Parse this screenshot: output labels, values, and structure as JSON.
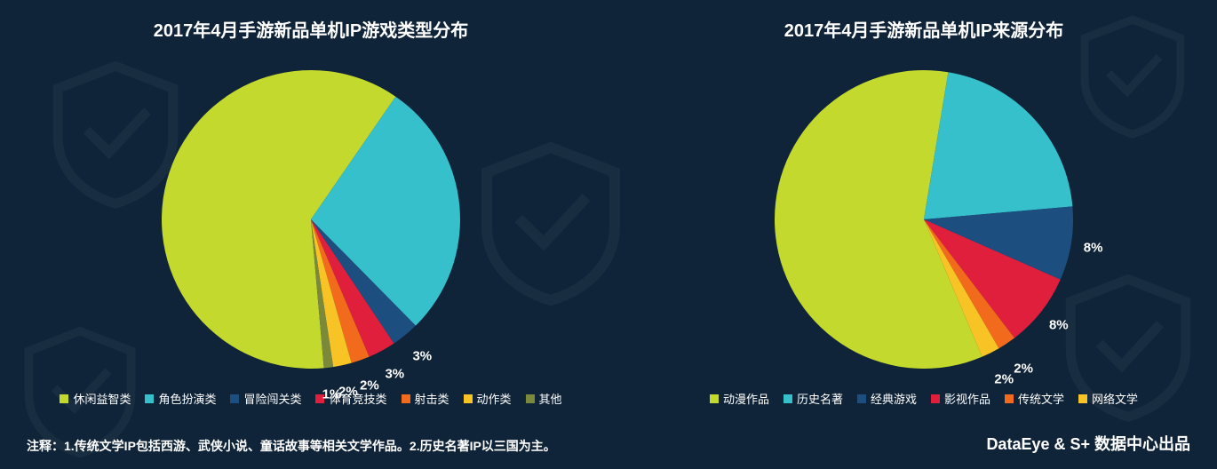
{
  "background_color": "#0f2438",
  "text_color": "#ffffff",
  "title_fontsize": 20,
  "label_fontsize": 15,
  "legend_fontsize": 13,
  "footnote_fontsize": 14,
  "attribution_fontsize": 18,
  "pie_radius": 168,
  "chart_left": {
    "type": "pie",
    "title": "2017年4月手游新品单机IP游戏类型分布",
    "start_angle_deg": 85,
    "slices": [
      {
        "label": "休闲益智类",
        "value": 61,
        "pct_text": "61%",
        "color": "#c4d92e",
        "label_r_factor": 0.6
      },
      {
        "label": "角色扮演类",
        "value": 28,
        "pct_text": "28%",
        "color": "#36c0cb",
        "label_r_factor": 0.72
      },
      {
        "label": "冒险闯关类",
        "value": 3,
        "pct_text": "3%",
        "color": "#1c4e80",
        "label_r_factor": 1.18
      },
      {
        "label": "体育竞技类",
        "value": 3,
        "pct_text": "3%",
        "color": "#e01f3d",
        "label_r_factor": 1.18
      },
      {
        "label": "射击类",
        "value": 2,
        "pct_text": "2%",
        "color": "#f26a1b",
        "label_r_factor": 1.18
      },
      {
        "label": "动作类",
        "value": 2,
        "pct_text": "2%",
        "color": "#f7c325",
        "label_r_factor": 1.18
      },
      {
        "label": "其他",
        "value": 1,
        "pct_text": "1%",
        "color": "#7a8a3a",
        "label_r_factor": 1.18
      }
    ]
  },
  "chart_right": {
    "type": "pie",
    "title": "2017年4月手游新品单机IP来源分布",
    "start_angle_deg": 67,
    "slices": [
      {
        "label": "动漫作品",
        "value": 59,
        "pct_text": "59%",
        "color": "#c4d92e",
        "label_r_factor": 0.6
      },
      {
        "label": "历史名著",
        "value": 21,
        "pct_text": "21%",
        "color": "#36c0cb",
        "label_r_factor": 0.72
      },
      {
        "label": "经典游戏",
        "value": 8,
        "pct_text": "8%",
        "color": "#1c4e80",
        "label_r_factor": 1.15
      },
      {
        "label": "影视作品",
        "value": 8,
        "pct_text": "8%",
        "color": "#e01f3d",
        "label_r_factor": 1.15
      },
      {
        "label": "传统文学",
        "value": 2,
        "pct_text": "2%",
        "color": "#f26a1b",
        "label_r_factor": 1.2
      },
      {
        "label": "网络文学",
        "value": 2,
        "pct_text": "2%",
        "color": "#f7c325",
        "label_r_factor": 1.2
      }
    ]
  },
  "footnote": "注释：1.传统文学IP包括西游、武侠小说、童话故事等相关文学作品。2.历史名著IP以三国为主。",
  "attribution": "DataEye & S+ 数据中心出品"
}
